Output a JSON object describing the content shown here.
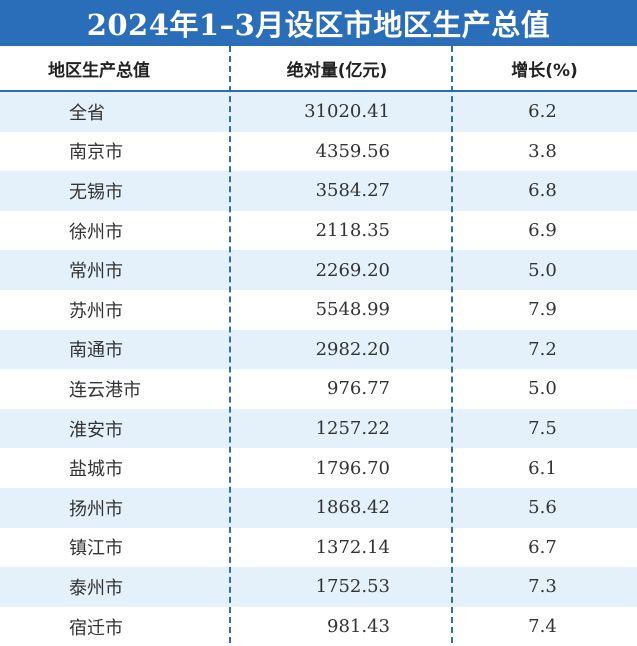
{
  "title": "2024年1–3月设区市地区生产总值",
  "headers": {
    "region": "地区生产总值",
    "value": "绝对量(亿元)",
    "growth": "增长(%)"
  },
  "rows": [
    {
      "region": "全省",
      "value": "31020.41",
      "growth": "6.2"
    },
    {
      "region": "南京市",
      "value": "4359.56",
      "growth": "3.8"
    },
    {
      "region": "无锡市",
      "value": "3584.27",
      "growth": "6.8"
    },
    {
      "region": "徐州市",
      "value": "2118.35",
      "growth": "6.9"
    },
    {
      "region": "常州市",
      "value": "2269.20",
      "growth": "5.0"
    },
    {
      "region": "苏州市",
      "value": "5548.99",
      "growth": "7.9"
    },
    {
      "region": "南通市",
      "value": "2982.20",
      "growth": "7.2"
    },
    {
      "region": "连云港市",
      "value": "976.77",
      "growth": "5.0"
    },
    {
      "region": "淮安市",
      "value": "1257.22",
      "growth": "7.5"
    },
    {
      "region": "盐城市",
      "value": "1796.70",
      "growth": "6.1"
    },
    {
      "region": "扬州市",
      "value": "1868.42",
      "growth": "5.6"
    },
    {
      "region": "镇江市",
      "value": "1372.14",
      "growth": "6.7"
    },
    {
      "region": "泰州市",
      "value": "1752.53",
      "growth": "7.3"
    },
    {
      "region": "宿迁市",
      "value": "981.43",
      "growth": "7.4"
    }
  ],
  "colors": {
    "title_bg": "#2a6db8",
    "stripe": "#e4f1fa",
    "divider": "#2a6db8"
  }
}
